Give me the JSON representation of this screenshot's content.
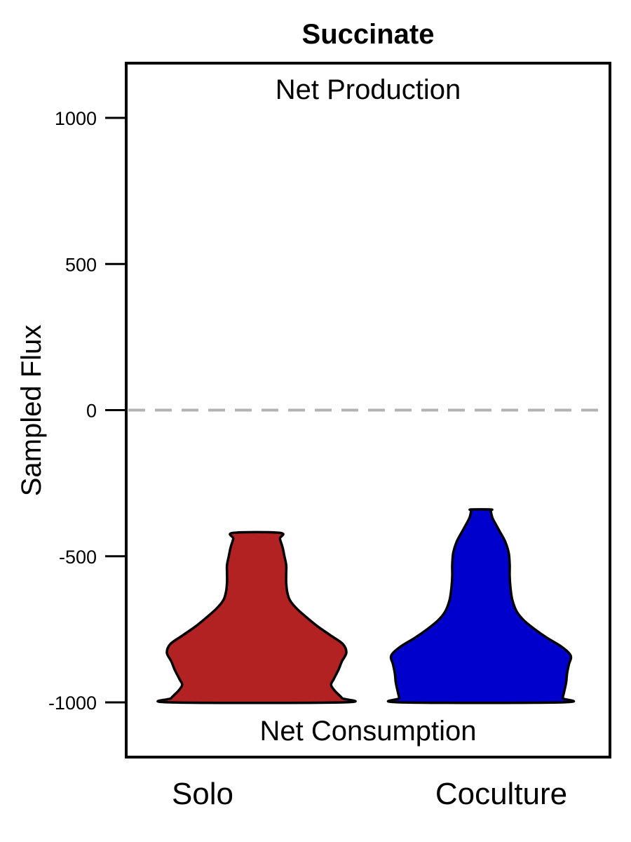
{
  "chart_data": {
    "type": "violin",
    "title": "Succinate",
    "xlabel": "",
    "ylabel": "Sampled Flux",
    "ylim": [
      -1190,
      1000
    ],
    "yticks": [
      1000,
      500,
      0,
      -500,
      -1000
    ],
    "ytick_labels": [
      "1000",
      "500",
      "0",
      "-500",
      "-1000"
    ],
    "reference_line": {
      "y": 0,
      "style": "dashed",
      "color": "#b3b3b3"
    },
    "annotations": {
      "top": "Net Production",
      "bottom": "Net Consumption"
    },
    "categories": [
      "Solo",
      "Coculture"
    ],
    "series": [
      {
        "category": "Solo",
        "color": "#b22222",
        "min": -1000,
        "max": -420,
        "density_profile": [
          [
            -1000,
            0.96
          ],
          [
            -985,
            0.95
          ],
          [
            -960,
            0.87
          ],
          [
            -940,
            0.83
          ],
          [
            -920,
            0.86
          ],
          [
            -890,
            0.91
          ],
          [
            -860,
            0.95
          ],
          [
            -830,
            1.0
          ],
          [
            -800,
            0.96
          ],
          [
            -770,
            0.82
          ],
          [
            -740,
            0.68
          ],
          [
            -710,
            0.56
          ],
          [
            -680,
            0.45
          ],
          [
            -650,
            0.37
          ],
          [
            -620,
            0.34
          ],
          [
            -590,
            0.33
          ],
          [
            -560,
            0.33
          ],
          [
            -530,
            0.33
          ],
          [
            -500,
            0.31
          ],
          [
            -470,
            0.29
          ],
          [
            -440,
            0.26
          ],
          [
            -420,
            0.26
          ]
        ]
      },
      {
        "category": "Coculture",
        "color": "#0000cd",
        "min": -1000,
        "max": -340,
        "density_profile": [
          [
            -1000,
            0.9
          ],
          [
            -985,
            0.91
          ],
          [
            -960,
            0.93
          ],
          [
            -930,
            0.95
          ],
          [
            -900,
            0.96
          ],
          [
            -870,
            0.98
          ],
          [
            -840,
            1.0
          ],
          [
            -810,
            0.9
          ],
          [
            -780,
            0.74
          ],
          [
            -750,
            0.6
          ],
          [
            -720,
            0.48
          ],
          [
            -690,
            0.4
          ],
          [
            -650,
            0.35
          ],
          [
            -610,
            0.33
          ],
          [
            -570,
            0.32
          ],
          [
            -530,
            0.32
          ],
          [
            -490,
            0.31
          ],
          [
            -450,
            0.27
          ],
          [
            -410,
            0.2
          ],
          [
            -370,
            0.13
          ],
          [
            -345,
            0.11
          ],
          [
            -340,
            0.11
          ]
        ]
      }
    ]
  }
}
